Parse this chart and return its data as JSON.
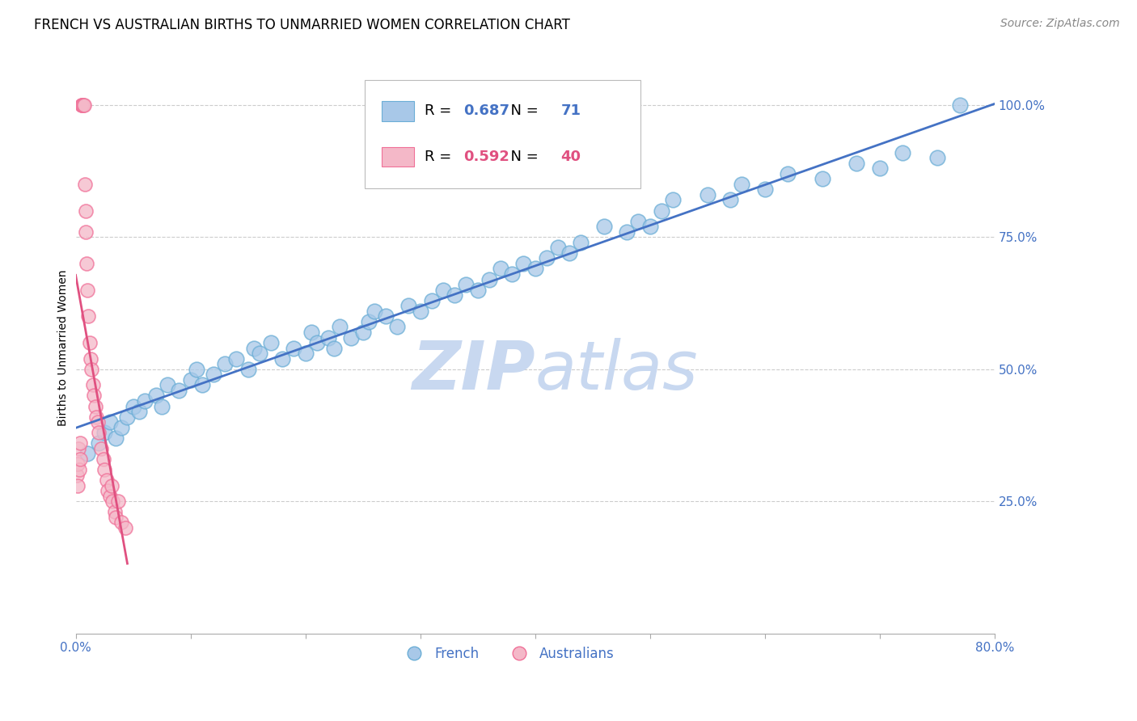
{
  "title": "FRENCH VS AUSTRALIAN BIRTHS TO UNMARRIED WOMEN CORRELATION CHART",
  "source": "Source: ZipAtlas.com",
  "ylabel": "Births to Unmarried Women",
  "x_tick_labels": [
    "0.0%",
    "",
    "",
    "",
    "",
    "",
    "",
    "",
    "80.0%"
  ],
  "x_ticks": [
    0,
    10,
    20,
    30,
    40,
    50,
    60,
    70,
    80
  ],
  "y_ticks_right": [
    25,
    50,
    75,
    100
  ],
  "y_tick_labels_right": [
    "25.0%",
    "50.0%",
    "75.0%",
    "100.0%"
  ],
  "xlim": [
    0.0,
    80.0
  ],
  "ylim": [
    0.0,
    108.0
  ],
  "blue_fill": "#a8c8e8",
  "blue_edge": "#6baed6",
  "pink_fill": "#f4b8c8",
  "pink_edge": "#f07098",
  "blue_line": "#4472c4",
  "pink_line": "#e05080",
  "legend_blue_label": "French",
  "legend_pink_label": "Australians",
  "R_blue": 0.687,
  "N_blue": 71,
  "R_pink": 0.592,
  "N_pink": 40,
  "watermark_zip": "ZIP",
  "watermark_atlas": "atlas",
  "watermark_color": "#c8d8f0",
  "title_fontsize": 12,
  "axis_label_fontsize": 10,
  "tick_fontsize": 11,
  "source_fontsize": 10,
  "background_color": "#ffffff",
  "grid_color": "#cccccc",
  "french_x": [
    1.0,
    2.0,
    2.5,
    3.0,
    3.5,
    4.0,
    4.5,
    5.0,
    5.5,
    6.0,
    7.0,
    7.5,
    8.0,
    9.0,
    10.0,
    10.5,
    11.0,
    12.0,
    13.0,
    14.0,
    15.0,
    15.5,
    16.0,
    17.0,
    18.0,
    19.0,
    20.0,
    20.5,
    21.0,
    22.0,
    22.5,
    23.0,
    24.0,
    25.0,
    25.5,
    26.0,
    27.0,
    28.0,
    29.0,
    30.0,
    31.0,
    32.0,
    33.0,
    34.0,
    35.0,
    36.0,
    37.0,
    38.0,
    39.0,
    40.0,
    41.0,
    42.0,
    43.0,
    44.0,
    46.0,
    48.0,
    49.0,
    50.0,
    51.0,
    52.0,
    55.0,
    57.0,
    58.0,
    60.0,
    62.0,
    65.0,
    68.0,
    70.0,
    72.0,
    75.0,
    77.0
  ],
  "french_y": [
    34.0,
    36.0,
    38.0,
    40.0,
    37.0,
    39.0,
    41.0,
    43.0,
    42.0,
    44.0,
    45.0,
    43.0,
    47.0,
    46.0,
    48.0,
    50.0,
    47.0,
    49.0,
    51.0,
    52.0,
    50.0,
    54.0,
    53.0,
    55.0,
    52.0,
    54.0,
    53.0,
    57.0,
    55.0,
    56.0,
    54.0,
    58.0,
    56.0,
    57.0,
    59.0,
    61.0,
    60.0,
    58.0,
    62.0,
    61.0,
    63.0,
    65.0,
    64.0,
    66.0,
    65.0,
    67.0,
    69.0,
    68.0,
    70.0,
    69.0,
    71.0,
    73.0,
    72.0,
    74.0,
    77.0,
    76.0,
    78.0,
    77.0,
    80.0,
    82.0,
    83.0,
    82.0,
    85.0,
    84.0,
    87.0,
    86.0,
    89.0,
    88.0,
    91.0,
    90.0,
    100.0
  ],
  "aus_x": [
    0.1,
    0.15,
    0.2,
    0.25,
    0.3,
    0.35,
    0.4,
    0.5,
    0.55,
    0.6,
    0.65,
    0.7,
    0.8,
    0.85,
    0.9,
    0.95,
    1.0,
    1.1,
    1.2,
    1.3,
    1.4,
    1.5,
    1.6,
    1.7,
    1.8,
    1.9,
    2.0,
    2.2,
    2.4,
    2.5,
    2.7,
    2.8,
    3.0,
    3.1,
    3.2,
    3.4,
    3.5,
    3.7,
    4.0,
    4.3
  ],
  "aus_y": [
    30.0,
    28.0,
    32.0,
    35.0,
    31.0,
    33.0,
    36.0,
    100.0,
    100.0,
    100.0,
    100.0,
    100.0,
    85.0,
    80.0,
    76.0,
    70.0,
    65.0,
    60.0,
    55.0,
    52.0,
    50.0,
    47.0,
    45.0,
    43.0,
    41.0,
    40.0,
    38.0,
    35.0,
    33.0,
    31.0,
    29.0,
    27.0,
    26.0,
    28.0,
    25.0,
    23.0,
    22.0,
    25.0,
    21.0,
    20.0
  ]
}
